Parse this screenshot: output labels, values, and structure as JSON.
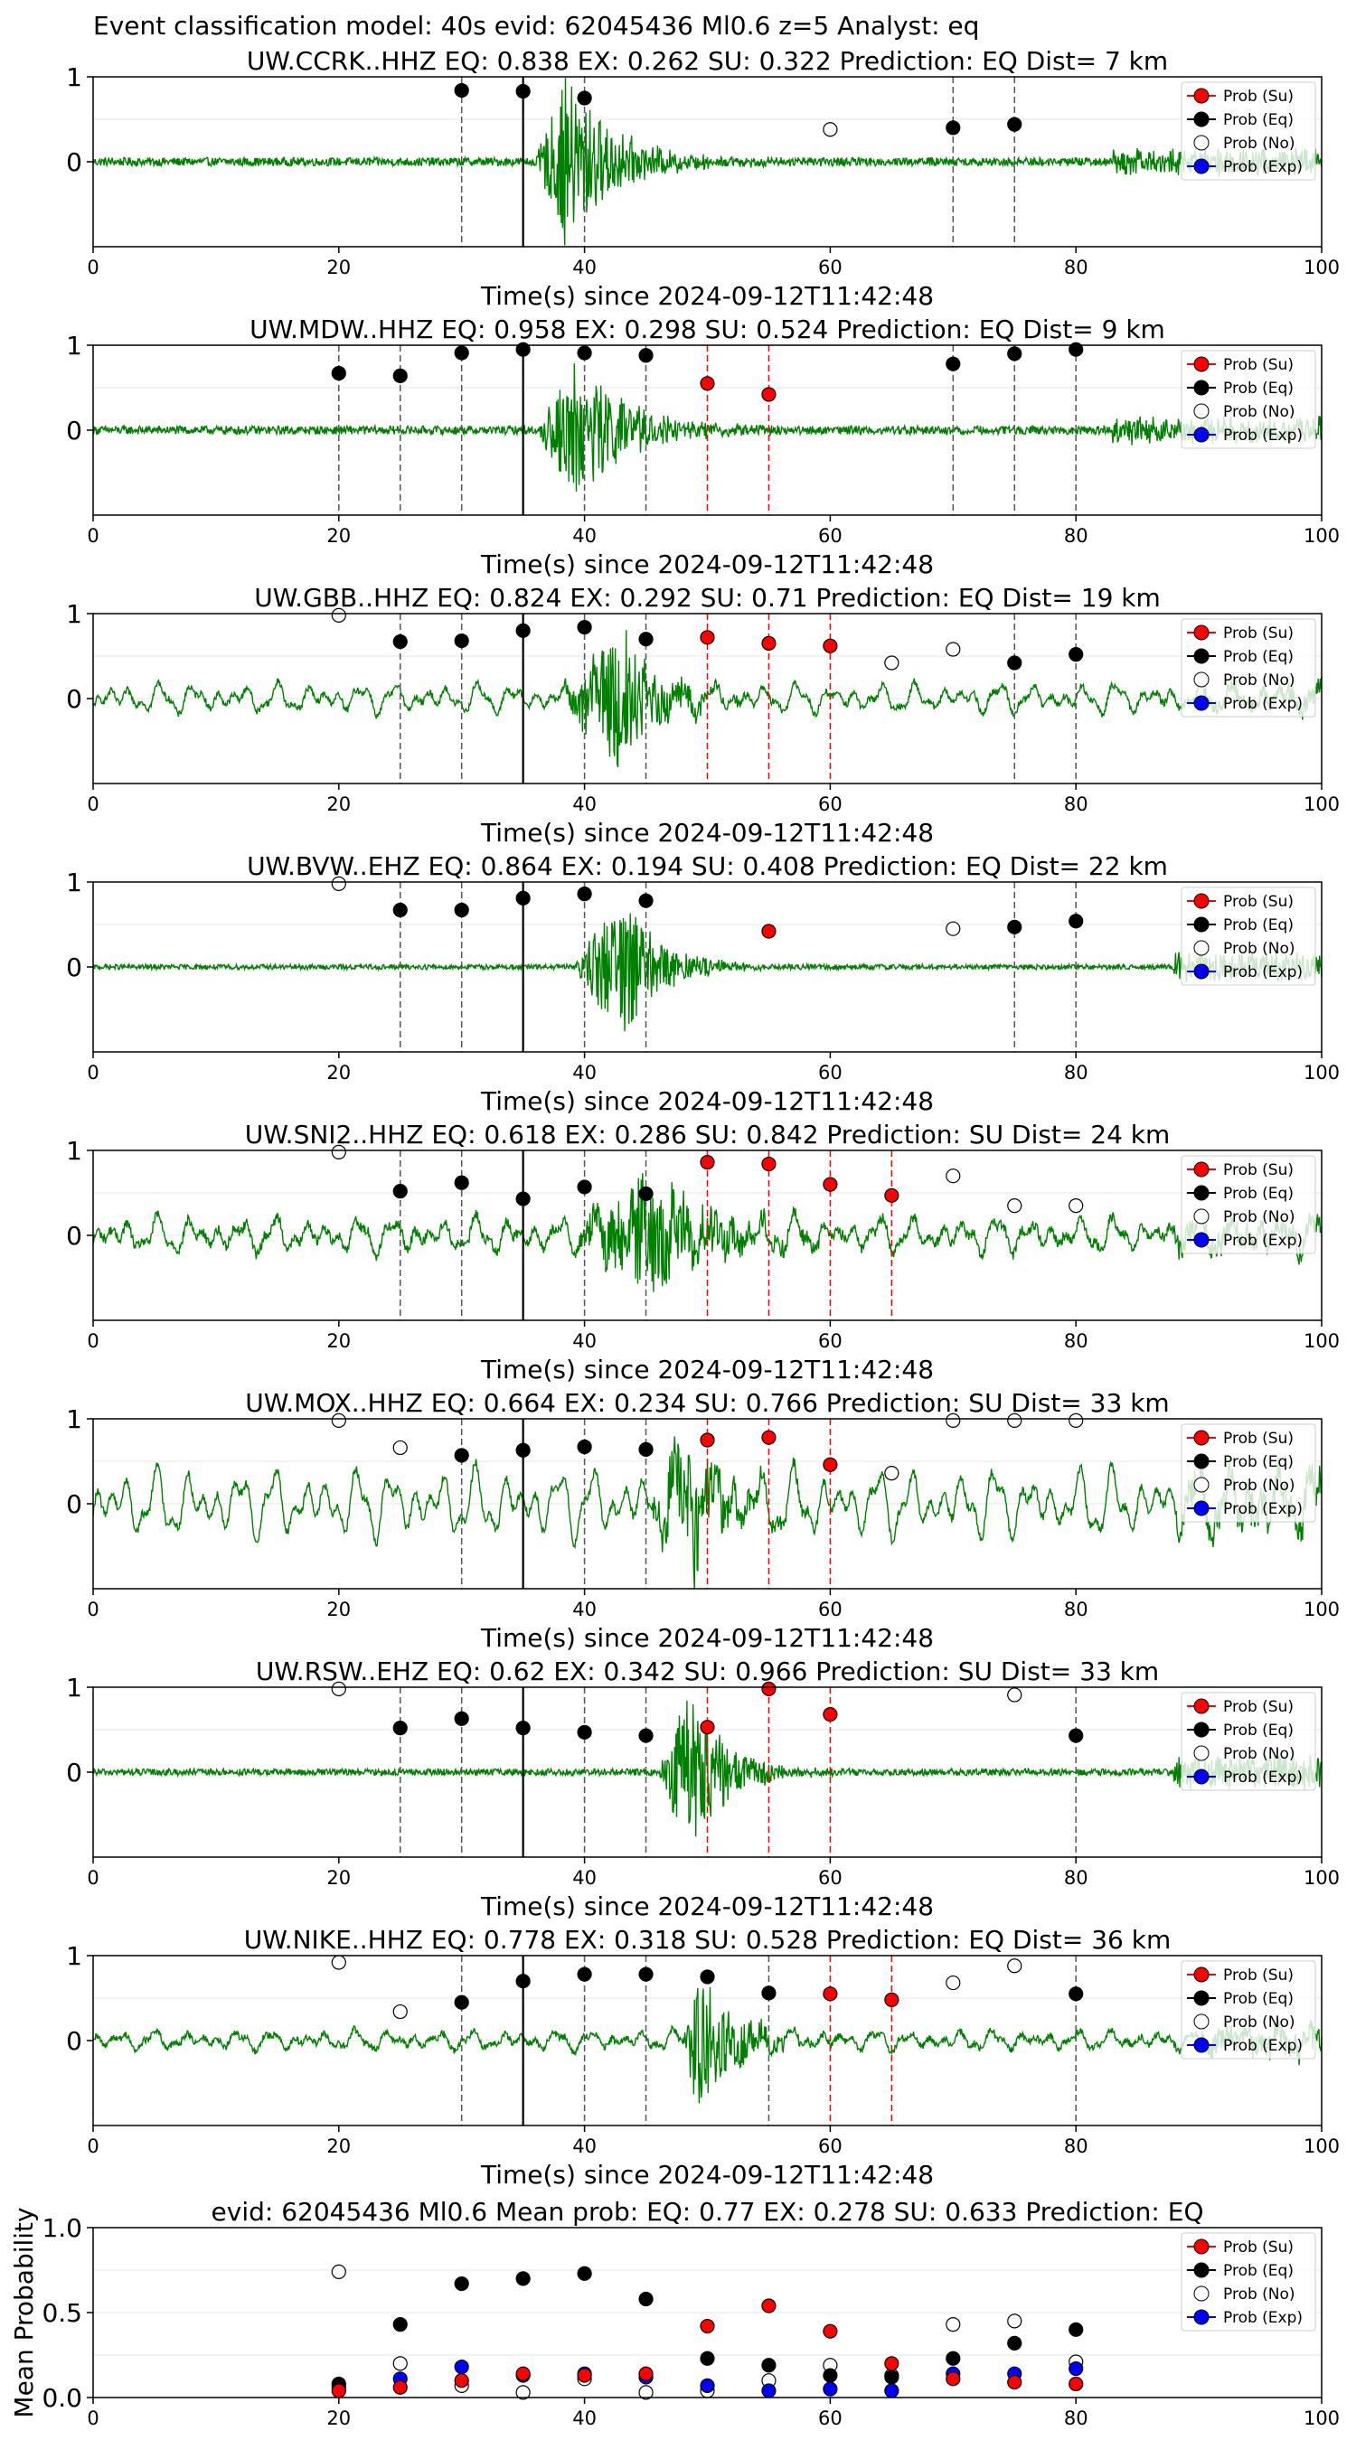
{
  "suptitle": "Event classification model: 40s evid: 62045436 Ml0.6 z=5 Analyst: eq",
  "colors": {
    "su": "#ff0000",
    "eq": "#000000",
    "no": "#ffffff",
    "exp": "#0000ff",
    "waveform": "#008000",
    "su_line": "#ff0000",
    "eq_line": "#000000"
  },
  "legend": [
    "Prob (Su)",
    "Prob (Eq)",
    "Prob (No)",
    "Prob (Exp)"
  ],
  "chart_data": [
    {
      "type": "line",
      "title": "UW.CCRK..HHZ   EQ: 0.838  EX: 0.262  SU: 0.322   Prediction: EQ    Dist= 7 km",
      "xlabel": "Time(s) since 2024-09-12T11:42:48",
      "xlim": [
        0,
        100
      ],
      "ylim": [
        -1,
        1
      ],
      "x_ticks": [
        "0",
        "20",
        "40",
        "60",
        "80",
        "100"
      ],
      "y_ticks": [
        "0",
        "1"
      ],
      "pick_time": 35,
      "waveform": {
        "noise": 0.05,
        "burst_start": 36,
        "burst_peak": 38.5,
        "burst_amp": 1.0,
        "burst_decay": 4,
        "tail_start": 83,
        "tail_amp": 0.13,
        "osc_amp": 0
      },
      "eq_points": [
        [
          30,
          0.84
        ],
        [
          35,
          0.83
        ],
        [
          40,
          0.75
        ],
        [
          70,
          0.4
        ],
        [
          75,
          0.44
        ]
      ],
      "su_points": [],
      "no_points": [
        [
          60,
          0.38
        ]
      ],
      "eq_vlines": [
        30,
        40,
        70,
        75
      ],
      "su_vlines": []
    },
    {
      "type": "line",
      "title": "UW.MDW..HHZ   EQ: 0.958  EX: 0.298  SU: 0.524   Prediction: EQ    Dist= 9 km",
      "xlabel": "Time(s) since 2024-09-12T11:42:48",
      "xlim": [
        0,
        100
      ],
      "ylim": [
        -1,
        1
      ],
      "x_ticks": [
        "0",
        "20",
        "40",
        "60",
        "80",
        "100"
      ],
      "y_ticks": [
        "0",
        "1"
      ],
      "pick_time": 35,
      "waveform": {
        "noise": 0.05,
        "burst_start": 36,
        "burst_peak": 39.5,
        "burst_amp": 0.85,
        "burst_decay": 4,
        "tail_start": 83,
        "tail_amp": 0.13,
        "osc_amp": 0
      },
      "eq_points": [
        [
          20,
          0.67
        ],
        [
          25,
          0.64
        ],
        [
          30,
          0.91
        ],
        [
          35,
          0.95
        ],
        [
          40,
          0.91
        ],
        [
          45,
          0.88
        ],
        [
          70,
          0.78
        ],
        [
          75,
          0.9
        ],
        [
          80,
          0.95
        ]
      ],
      "su_points": [
        [
          50,
          0.55
        ],
        [
          55,
          0.42
        ]
      ],
      "no_points": [],
      "eq_vlines": [
        20,
        25,
        30,
        40,
        45,
        70,
        75,
        80
      ],
      "su_vlines": [
        50,
        55
      ]
    },
    {
      "type": "line",
      "title": "UW.GBB..HHZ   EQ: 0.824  EX: 0.292  SU: 0.71   Prediction: EQ    Dist= 19 km",
      "xlabel": "Time(s) since 2024-09-12T11:42:48",
      "xlim": [
        0,
        100
      ],
      "ylim": [
        -1,
        1
      ],
      "x_ticks": [
        "0",
        "20",
        "40",
        "60",
        "80",
        "100"
      ],
      "y_ticks": [
        "0",
        "1"
      ],
      "pick_time": 35,
      "waveform": {
        "noise": 0.04,
        "burst_start": 38,
        "burst_peak": 43,
        "burst_amp": 0.85,
        "burst_decay": 3,
        "tail_start": 90,
        "tail_amp": 0.1,
        "osc_amp": 0.15
      },
      "eq_points": [
        [
          25,
          0.67
        ],
        [
          30,
          0.68
        ],
        [
          35,
          0.8
        ],
        [
          40,
          0.84
        ],
        [
          45,
          0.7
        ],
        [
          75,
          0.42
        ],
        [
          80,
          0.52
        ]
      ],
      "su_points": [
        [
          50,
          0.72
        ],
        [
          55,
          0.65
        ],
        [
          60,
          0.62
        ]
      ],
      "no_points": [
        [
          20,
          0.98
        ],
        [
          65,
          0.42
        ],
        [
          70,
          0.58
        ]
      ],
      "eq_vlines": [
        25,
        30,
        40,
        45,
        75,
        80
      ],
      "su_vlines": [
        50,
        55,
        60
      ]
    },
    {
      "type": "line",
      "title": "UW.BVW..EHZ   EQ: 0.864  EX: 0.194  SU: 0.408   Prediction: EQ    Dist= 22 km",
      "xlabel": "Time(s) since 2024-09-12T11:42:48",
      "xlim": [
        0,
        100
      ],
      "ylim": [
        -1,
        1
      ],
      "x_ticks": [
        "0",
        "20",
        "40",
        "60",
        "80",
        "100"
      ],
      "y_ticks": [
        "0",
        "1"
      ],
      "pick_time": 35,
      "waveform": {
        "noise": 0.03,
        "burst_start": 39,
        "burst_peak": 43,
        "burst_amp": 0.9,
        "burst_decay": 3,
        "tail_start": 88,
        "tail_amp": 0.15,
        "osc_amp": 0
      },
      "eq_points": [
        [
          25,
          0.67
        ],
        [
          30,
          0.67
        ],
        [
          35,
          0.81
        ],
        [
          40,
          0.86
        ],
        [
          45,
          0.78
        ],
        [
          75,
          0.47
        ],
        [
          80,
          0.54
        ]
      ],
      "su_points": [
        [
          55,
          0.42
        ]
      ],
      "no_points": [
        [
          20,
          0.98
        ],
        [
          70,
          0.45
        ]
      ],
      "eq_vlines": [
        25,
        30,
        40,
        45,
        75,
        80
      ],
      "su_vlines": []
    },
    {
      "type": "line",
      "title": "UW.SNI2..HHZ   EQ: 0.618  EX: 0.286  SU: 0.842   Prediction: SU    Dist= 24 km",
      "xlabel": "Time(s) since 2024-09-12T11:42:48",
      "xlim": [
        0,
        100
      ],
      "ylim": [
        -1,
        1
      ],
      "x_ticks": [
        "0",
        "20",
        "40",
        "60",
        "80",
        "100"
      ],
      "y_ticks": [
        "0",
        "1"
      ],
      "pick_time": 35,
      "waveform": {
        "noise": 0.06,
        "burst_start": 39,
        "burst_peak": 45,
        "burst_amp": 0.75,
        "burst_decay": 5,
        "tail_start": 88,
        "tail_amp": 0.12,
        "osc_amp": 0.18
      },
      "eq_points": [
        [
          25,
          0.52
        ],
        [
          30,
          0.62
        ],
        [
          35,
          0.43
        ],
        [
          40,
          0.57
        ],
        [
          45,
          0.49
        ]
      ],
      "su_points": [
        [
          50,
          0.86
        ],
        [
          55,
          0.84
        ],
        [
          60,
          0.6
        ],
        [
          65,
          0.47
        ]
      ],
      "no_points": [
        [
          20,
          0.98
        ],
        [
          70,
          0.7
        ],
        [
          75,
          0.35
        ],
        [
          80,
          0.35
        ]
      ],
      "eq_vlines": [
        25,
        30,
        40,
        45
      ],
      "su_vlines": [
        50,
        55,
        60,
        65
      ]
    },
    {
      "type": "line",
      "title": "UW.MOX..HHZ   EQ: 0.664  EX: 0.234  SU: 0.766   Prediction: SU    Dist= 33 km",
      "xlabel": "Time(s) since 2024-09-12T11:42:48",
      "xlim": [
        0,
        100
      ],
      "ylim": [
        -1,
        1
      ],
      "x_ticks": [
        "0",
        "20",
        "40",
        "60",
        "80",
        "100"
      ],
      "y_ticks": [
        "0",
        "1"
      ],
      "pick_time": 35,
      "waveform": {
        "noise": 0.05,
        "burst_start": 45,
        "burst_peak": 48.5,
        "burst_amp": 0.75,
        "burst_decay": 3,
        "tail_start": 88,
        "tail_amp": 0.2,
        "osc_amp": 0.35
      },
      "eq_points": [
        [
          30,
          0.57
        ],
        [
          35,
          0.63
        ],
        [
          40,
          0.67
        ],
        [
          45,
          0.64
        ]
      ],
      "su_points": [
        [
          50,
          0.75
        ],
        [
          55,
          0.78
        ],
        [
          60,
          0.46
        ]
      ],
      "no_points": [
        [
          20,
          0.98
        ],
        [
          25,
          0.66
        ],
        [
          65,
          0.36
        ],
        [
          70,
          0.98
        ],
        [
          75,
          0.98
        ],
        [
          80,
          0.98
        ]
      ],
      "eq_vlines": [
        30,
        40,
        45
      ],
      "su_vlines": [
        50,
        55,
        60
      ]
    },
    {
      "type": "line",
      "title": "UW.RSW..EHZ   EQ: 0.62  EX: 0.342  SU: 0.966   Prediction: SU    Dist= 33 km",
      "xlabel": "Time(s) since 2024-09-12T11:42:48",
      "xlim": [
        0,
        100
      ],
      "ylim": [
        -1,
        1
      ],
      "x_ticks": [
        "0",
        "20",
        "40",
        "60",
        "80",
        "100"
      ],
      "y_ticks": [
        "0",
        "1"
      ],
      "pick_time": 35,
      "waveform": {
        "noise": 0.04,
        "burst_start": 46,
        "burst_peak": 48.5,
        "burst_amp": 0.95,
        "burst_decay": 3,
        "tail_start": 88,
        "tail_amp": 0.18,
        "osc_amp": 0
      },
      "eq_points": [
        [
          25,
          0.52
        ],
        [
          30,
          0.63
        ],
        [
          35,
          0.52
        ],
        [
          40,
          0.47
        ],
        [
          45,
          0.43
        ],
        [
          80,
          0.43
        ]
      ],
      "su_points": [
        [
          50,
          0.53
        ],
        [
          55,
          0.98
        ],
        [
          60,
          0.68
        ]
      ],
      "no_points": [
        [
          20,
          0.98
        ],
        [
          75,
          0.91
        ]
      ],
      "eq_vlines": [
        25,
        30,
        40,
        45,
        80
      ],
      "su_vlines": [
        50,
        55,
        60
      ]
    },
    {
      "type": "line",
      "title": "UW.NIKE..HHZ   EQ: 0.778  EX: 0.318  SU: 0.528   Prediction: EQ    Dist= 36 km",
      "xlabel": "Time(s) since 2024-09-12T11:42:48",
      "xlim": [
        0,
        100
      ],
      "ylim": [
        -1,
        1
      ],
      "x_ticks": [
        "0",
        "20",
        "40",
        "60",
        "80",
        "100"
      ],
      "y_ticks": [
        "0",
        "1"
      ],
      "pick_time": 35,
      "waveform": {
        "noise": 0.04,
        "burst_start": 48,
        "burst_peak": 49.5,
        "burst_amp": 0.95,
        "burst_decay": 2.5,
        "tail_start": 90,
        "tail_amp": 0.15,
        "osc_amp": 0.1
      },
      "eq_points": [
        [
          30,
          0.45
        ],
        [
          35,
          0.7
        ],
        [
          40,
          0.78
        ],
        [
          45,
          0.78
        ],
        [
          50,
          0.75
        ],
        [
          55,
          0.56
        ],
        [
          80,
          0.55
        ]
      ],
      "su_points": [
        [
          60,
          0.55
        ],
        [
          65,
          0.48
        ]
      ],
      "no_points": [
        [
          20,
          0.92
        ],
        [
          25,
          0.34
        ],
        [
          70,
          0.68
        ],
        [
          75,
          0.88
        ]
      ],
      "eq_vlines": [
        30,
        40,
        45,
        55,
        80
      ],
      "su_vlines": [
        60,
        65
      ]
    },
    {
      "type": "scatter",
      "title": "evid: 62045436  Ml0.6   Mean prob:   EQ: 0.77  EX: 0.278  SU: 0.633   Prediction: EQ",
      "xlabel": "",
      "ylabel": "Mean Probability",
      "xlim": [
        0,
        100
      ],
      "ylim": [
        0,
        1
      ],
      "x_ticks": [
        "0",
        "20",
        "40",
        "60",
        "80",
        "100"
      ],
      "y_ticks": [
        "0.0",
        "0.5",
        "1.0"
      ],
      "series": [
        {
          "name": "Prob (Su)",
          "points": [
            [
              20,
              0.04
            ],
            [
              25,
              0.06
            ],
            [
              30,
              0.1
            ],
            [
              35,
              0.14
            ],
            [
              40,
              0.13
            ],
            [
              45,
              0.14
            ],
            [
              50,
              0.42
            ],
            [
              55,
              0.54
            ],
            [
              60,
              0.39
            ],
            [
              65,
              0.2
            ],
            [
              70,
              0.11
            ],
            [
              75,
              0.09
            ],
            [
              80,
              0.08
            ]
          ]
        },
        {
          "name": "Prob (Eq)",
          "points": [
            [
              20,
              0.08
            ],
            [
              25,
              0.43
            ],
            [
              30,
              0.67
            ],
            [
              35,
              0.7
            ],
            [
              40,
              0.73
            ],
            [
              45,
              0.58
            ],
            [
              50,
              0.23
            ],
            [
              55,
              0.19
            ],
            [
              60,
              0.13
            ],
            [
              65,
              0.12
            ],
            [
              70,
              0.23
            ],
            [
              75,
              0.32
            ],
            [
              80,
              0.4
            ]
          ]
        },
        {
          "name": "Prob (No)",
          "points": [
            [
              20,
              0.74
            ],
            [
              25,
              0.2
            ],
            [
              30,
              0.07
            ],
            [
              35,
              0.03
            ],
            [
              40,
              0.11
            ],
            [
              45,
              0.03
            ],
            [
              50,
              0.04
            ],
            [
              55,
              0.1
            ],
            [
              60,
              0.19
            ],
            [
              65,
              0.13
            ],
            [
              70,
              0.43
            ],
            [
              75,
              0.45
            ],
            [
              80,
              0.21
            ]
          ]
        },
        {
          "name": "Prob (Exp)",
          "points": [
            [
              20,
              0.06
            ],
            [
              25,
              0.11
            ],
            [
              30,
              0.18
            ],
            [
              35,
              0.13
            ],
            [
              40,
              0.14
            ],
            [
              45,
              0.12
            ],
            [
              50,
              0.07
            ],
            [
              55,
              0.04
            ],
            [
              60,
              0.05
            ],
            [
              65,
              0.04
            ],
            [
              70,
              0.14
            ],
            [
              75,
              0.14
            ],
            [
              80,
              0.17
            ]
          ]
        }
      ]
    }
  ]
}
